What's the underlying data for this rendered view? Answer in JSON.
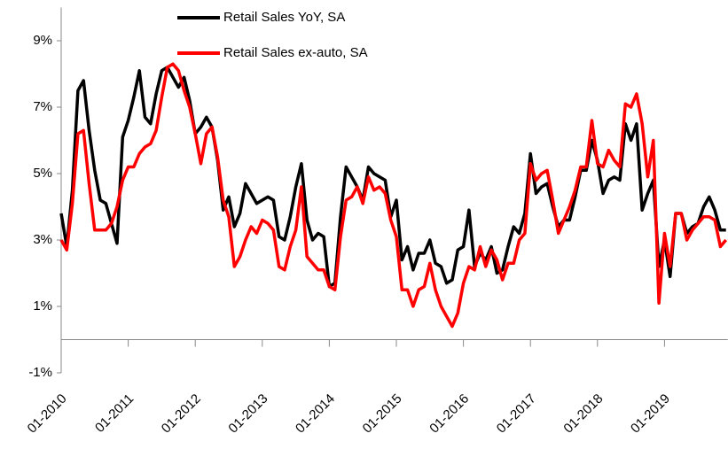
{
  "chart_data": {
    "type": "line",
    "categories": [
      "01-2010",
      null,
      null,
      null,
      null,
      null,
      null,
      null,
      null,
      null,
      null,
      null,
      "01-2011",
      null,
      null,
      null,
      null,
      null,
      null,
      null,
      null,
      null,
      null,
      null,
      "01-2012",
      null,
      null,
      null,
      null,
      null,
      null,
      null,
      null,
      null,
      null,
      null,
      "01-2013",
      null,
      null,
      null,
      null,
      null,
      null,
      null,
      null,
      null,
      null,
      null,
      "01-2014",
      null,
      null,
      null,
      null,
      null,
      null,
      null,
      null,
      null,
      null,
      null,
      "01-2015",
      null,
      null,
      null,
      null,
      null,
      null,
      null,
      null,
      null,
      null,
      null,
      "01-2016",
      null,
      null,
      null,
      null,
      null,
      null,
      null,
      null,
      null,
      null,
      null,
      "01-2017",
      null,
      null,
      null,
      null,
      null,
      null,
      null,
      null,
      null,
      null,
      null,
      "01-2018",
      null,
      null,
      null,
      null,
      null,
      null,
      null,
      null,
      null,
      null,
      null,
      "01-2019",
      null,
      null,
      null,
      null,
      null,
      null,
      null,
      null,
      null,
      null,
      null
    ],
    "series": [
      {
        "name": "Retail Sales YoY, SA",
        "color": "#000000",
        "values": [
          3.8,
          2.8,
          4.5,
          7.5,
          7.8,
          6.3,
          5.1,
          4.2,
          4.1,
          3.5,
          2.9,
          6.1,
          6.6,
          7.3,
          8.1,
          6.7,
          6.5,
          7.4,
          8.1,
          8.2,
          7.9,
          7.6,
          7.9,
          7.2,
          6.2,
          6.4,
          6.7,
          6.4,
          5.4,
          3.9,
          4.3,
          3.4,
          3.8,
          4.7,
          4.4,
          4.1,
          4.2,
          4.3,
          4.2,
          3.1,
          3.0,
          3.7,
          4.6,
          5.3,
          3.6,
          3.0,
          3.2,
          3.1,
          1.6,
          1.7,
          3.7,
          5.2,
          4.9,
          4.6,
          4.2,
          5.2,
          5.0,
          4.9,
          4.8,
          3.7,
          4.2,
          2.4,
          2.8,
          2.1,
          2.6,
          2.6,
          3.0,
          2.3,
          2.2,
          1.7,
          1.8,
          2.7,
          2.8,
          3.9,
          2.2,
          2.6,
          2.4,
          2.8,
          2.0,
          2.1,
          2.8,
          3.4,
          3.2,
          3.8,
          5.6,
          4.4,
          4.6,
          4.7,
          4.0,
          3.4,
          3.6,
          3.6,
          4.3,
          5.1,
          5.1,
          6.0,
          5.4,
          4.4,
          4.8,
          4.9,
          4.8,
          6.5,
          6.0,
          6.5,
          3.9,
          4.4,
          4.8,
          2.2,
          3.0,
          1.9,
          3.8,
          3.8,
          3.2,
          3.4,
          3.5,
          4.0,
          4.3,
          3.9,
          3.3,
          3.3
        ]
      },
      {
        "name": "Retail Sales ex-auto, SA",
        "color": "#ff0000",
        "values": [
          3.0,
          2.7,
          4.1,
          6.2,
          6.3,
          4.7,
          3.3,
          3.3,
          3.3,
          3.5,
          4.0,
          4.8,
          5.2,
          5.2,
          5.6,
          5.8,
          5.9,
          6.3,
          7.3,
          8.2,
          8.3,
          8.1,
          7.5,
          7.0,
          6.2,
          5.3,
          6.2,
          6.4,
          5.5,
          4.2,
          3.7,
          2.2,
          2.5,
          3.0,
          3.4,
          3.2,
          3.6,
          3.5,
          3.3,
          2.2,
          2.1,
          2.8,
          3.3,
          4.6,
          2.5,
          2.3,
          2.1,
          2.1,
          1.6,
          1.5,
          3.1,
          4.2,
          4.3,
          4.6,
          4.1,
          4.9,
          4.5,
          4.6,
          4.4,
          3.6,
          3.1,
          1.5,
          1.5,
          1.0,
          1.5,
          1.6,
          2.3,
          1.5,
          1.0,
          0.7,
          0.4,
          0.8,
          1.7,
          2.2,
          2.1,
          2.8,
          2.2,
          2.7,
          2.4,
          1.8,
          2.3,
          2.3,
          3.0,
          3.2,
          5.3,
          4.8,
          5.0,
          5.1,
          4.2,
          3.2,
          3.6,
          4.0,
          4.5,
          5.2,
          5.2,
          6.6,
          5.3,
          5.2,
          5.7,
          5.4,
          5.2,
          7.1,
          7.0,
          7.4,
          6.5,
          4.9,
          6.0,
          1.1,
          3.2,
          2.2,
          3.8,
          3.8,
          3.0,
          3.3,
          3.5,
          3.7,
          3.7,
          3.6,
          2.8,
          3.0
        ]
      }
    ],
    "ylim": [
      -1,
      10
    ],
    "yticks": [
      {
        "value": -1,
        "label": "-1%"
      },
      {
        "value": 1,
        "label": "1%"
      },
      {
        "value": 3,
        "label": "3%"
      },
      {
        "value": 5,
        "label": "5%"
      },
      {
        "value": 7,
        "label": "7%"
      },
      {
        "value": 9,
        "label": "9%"
      }
    ],
    "legend": "top"
  }
}
